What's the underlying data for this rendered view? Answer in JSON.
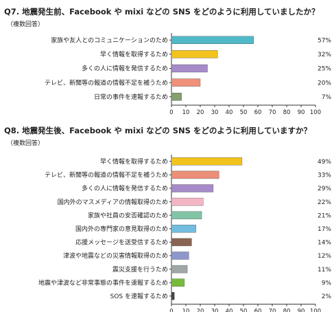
{
  "q7": {
    "title": "Q7. 地震発生前、Facebook や mixi などの SNS をどのように利用していましたか？",
    "note": "（複数回答）"
  },
  "q8": {
    "title": "Q8. 地震発生後、Facebook や mixi などの SNS をどのように利用していますか？",
    "note": "（複数回答）"
  },
  "chart_data": [
    {
      "type": "bar",
      "orientation": "horizontal",
      "categories": [
        "家族や友人とのコミュニケーションのため",
        "早く情報を取得するため",
        "多くの人に情報を発信するため",
        "テレビ、新聞等の報道の情報不足を補うため",
        "日常の事件を速報するため"
      ],
      "values": [
        57,
        32,
        25,
        20,
        7
      ],
      "value_labels": [
        "57%",
        "32%",
        "25%",
        "20%",
        "7%"
      ],
      "colors": [
        "#4fb9c8",
        "#f2c31c",
        "#a78ac9",
        "#f0907a",
        "#849f70"
      ],
      "xlim": [
        0,
        100
      ],
      "xticks": [
        "0",
        "10",
        "20",
        "30",
        "40",
        "50",
        "60",
        "70",
        "80",
        "90",
        "100"
      ]
    },
    {
      "type": "bar",
      "orientation": "horizontal",
      "categories": [
        "早く情報を取得するため",
        "テレビ、新聞等の報道の情報不足を補うため",
        "多くの人に情報を発信するため",
        "国内外のマスメディアの情報取得のため",
        "家族や社員の安否確認のため",
        "国内外の専門家の意見取得のため",
        "応援メッセージを送受信するため",
        "津波や地震などの災害情報取得のため",
        "震災支援を行うため",
        "地震や津波など非常事態の事件を速報するため",
        "SOS を速報するため"
      ],
      "values": [
        49,
        33,
        29,
        22,
        21,
        17,
        14,
        12,
        11,
        9,
        2
      ],
      "value_labels": [
        "49%",
        "33%",
        "29%",
        "22%",
        "21%",
        "17%",
        "14%",
        "12%",
        "11%",
        "9%",
        "2%"
      ],
      "colors": [
        "#f2c31c",
        "#ec8f78",
        "#a78ac9",
        "#f3b6c4",
        "#82c5a6",
        "#72bde0",
        "#8a6452",
        "#8e96cc",
        "#a1a7a8",
        "#77bb3c",
        "#444444"
      ],
      "xlim": [
        0,
        100
      ],
      "xticks": [
        "0",
        "10",
        "20",
        "30",
        "40",
        "50",
        "60",
        "70",
        "80",
        "90",
        "100"
      ]
    }
  ]
}
